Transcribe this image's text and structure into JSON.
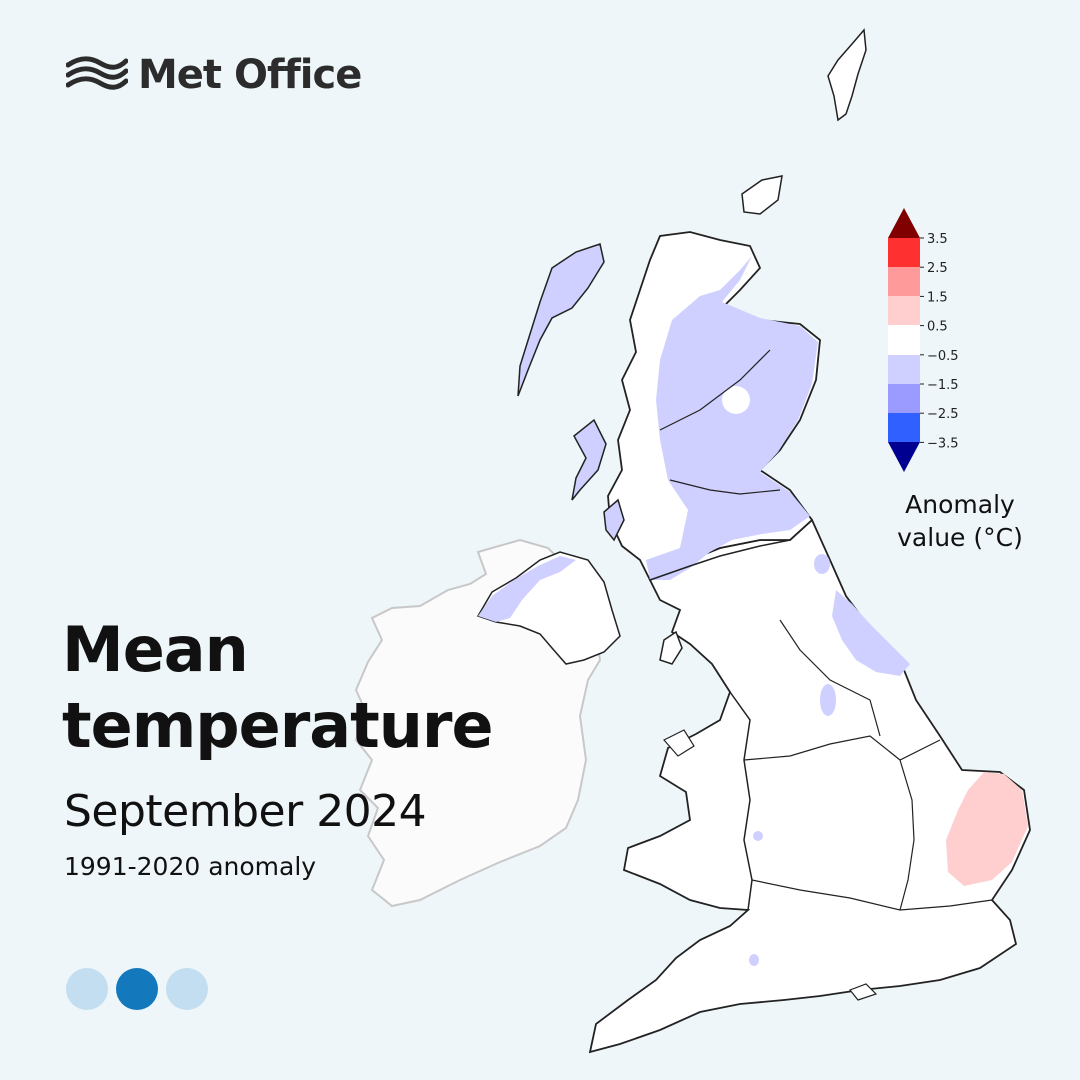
{
  "brand": {
    "name": "Met Office",
    "logo_icon": "met-office-waves-logo"
  },
  "title_line1": "Mean",
  "title_line2": "temperature",
  "subtitle": "September 2024",
  "caption": "1991-2020 anomaly",
  "legend": {
    "label_line1": "Anomaly",
    "label_line2": "value (°C)",
    "ticks": [
      "3.5",
      "2.5",
      "1.5",
      "0.5",
      "−0.5",
      "−1.5",
      "−2.5",
      "−3.5"
    ],
    "colors": {
      "above_3_5": "#800000",
      "2_5_to_3_5": "#ff3030",
      "1_5_to_2_5": "#ff9a9a",
      "0_5_to_1_5": "#ffcfcf",
      "neutral": "#ffffff",
      "minus_1_5_to_minus_0_5": "#cfd0ff",
      "minus_2_5_to_minus_1_5": "#9a9aff",
      "minus_3_5_to_minus_2_5": "#3060ff",
      "below_minus_3_5": "#000090"
    }
  },
  "pagination": {
    "total": 3,
    "active_index": 1
  }
}
